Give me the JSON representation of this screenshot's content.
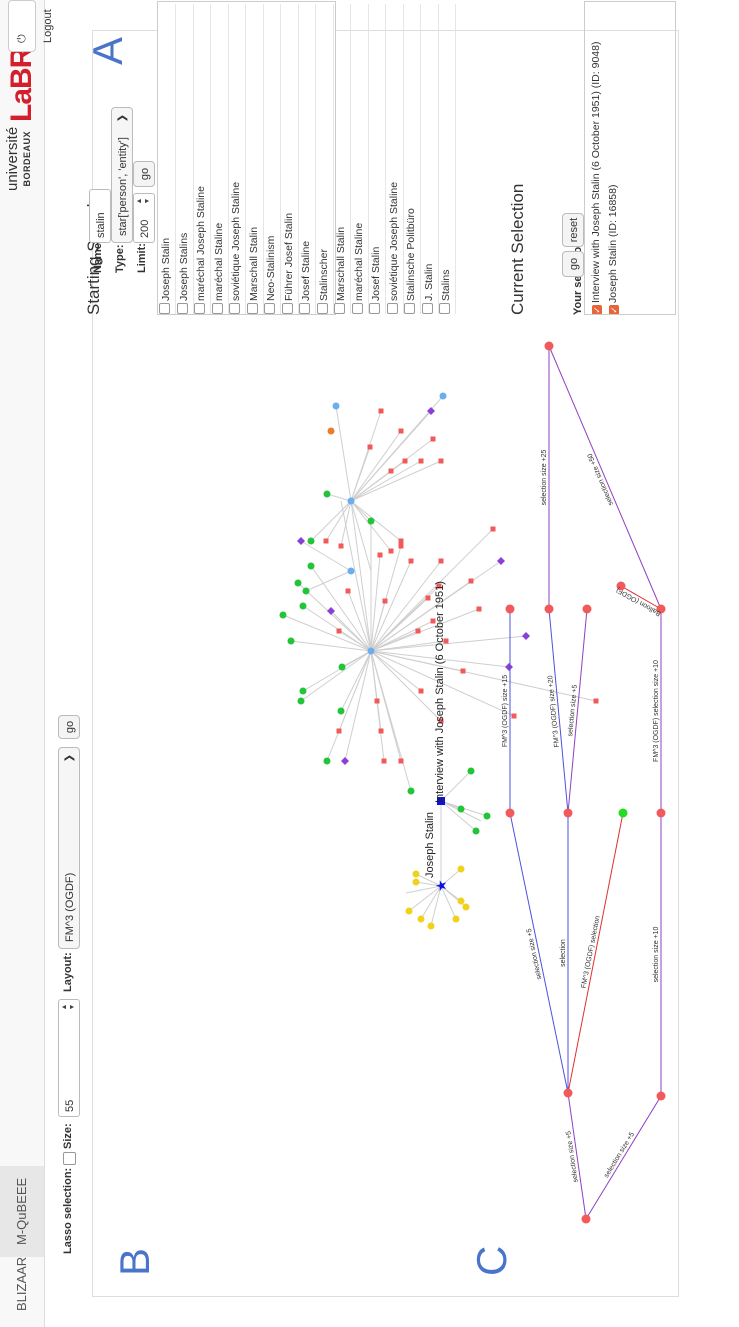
{
  "nav": {
    "items": [
      "BLIZAAR",
      "M-QuBEEE"
    ],
    "active_index": 1,
    "logo_universite": "université",
    "logo_bordeaux": "BORDEAUX",
    "logo_labri": "LaBRI",
    "logout_label": "Logout",
    "logout_icon": "logout-icon"
  },
  "toolbar": {
    "lasso_label": "Lasso selection:",
    "size_label": "Size:",
    "size_value": "55",
    "layout_label": "Layout:",
    "layout_value": "FM^3 (OGDF)",
    "go_label": "go"
  },
  "panel_letters": {
    "a": "A",
    "b": "B",
    "c": "C"
  },
  "search": {
    "title": "Starting Search",
    "name_label": "Name:",
    "name_value": "stalin",
    "type_label": "Type:",
    "type_value": "star['person', 'entity']",
    "limit_label": "Limit:",
    "limit_value": "200",
    "go_label": "go",
    "results": [
      "Joseph Stalin",
      "Joseph Stalins",
      "maréchal Joseph Staline",
      "maréchal Staline",
      "soviétique Joseph Staline",
      "Marschall Stalin",
      "Neo-Stalinism",
      "Führer Josef Stalin",
      "Josef Staline",
      "Stalinscher",
      "Marschall Stalin",
      "maréchal Staline",
      "Josef Stalin",
      "soviétique Joseph Staline",
      "Stalinsche Politbüro",
      "J. Stalin",
      "Stalins"
    ]
  },
  "selection": {
    "title": "Current Selection",
    "your_selection_label": "Your selection:",
    "go_label": "go",
    "reset_label": "reset",
    "items": [
      "Interview with Joseph Stalin (6 October 1951) (ID: 9048)",
      "Joseph Stalin (ID: 16858)"
    ]
  },
  "graph": {
    "label_interview": "Interview with Joseph Stalin (6 October 1951)",
    "label_joseph": "Joseph Stalin",
    "colors": {
      "edge": "#cfcfcf",
      "red": "#f05a5a",
      "green": "#22c43a",
      "blue": "#6aaef0",
      "purple": "#8a3fd6",
      "yellow": "#f0d21a",
      "orange": "#e87d2c",
      "focus": "#1010e0"
    }
  },
  "history": {
    "colors": {
      "node": "#f05a5a",
      "current": "#22dd22",
      "blue_edge": "#5050e0",
      "red_edge": "#e03030",
      "purple_edge": "#9040c0"
    },
    "edge_labels": [
      "selection size +5",
      "selection size +5",
      "selection size +5",
      "selection",
      "FM^3 (OGDF) selection",
      "FM^3 (OGDF) size +15",
      "FM^3 (OGDF) size +20",
      "selection size +5",
      "selection size +25",
      "selection size +10",
      "FM^3 (OGDF) selection size +10",
      "selection size +50",
      "Balloon (OGDF)"
    ]
  }
}
